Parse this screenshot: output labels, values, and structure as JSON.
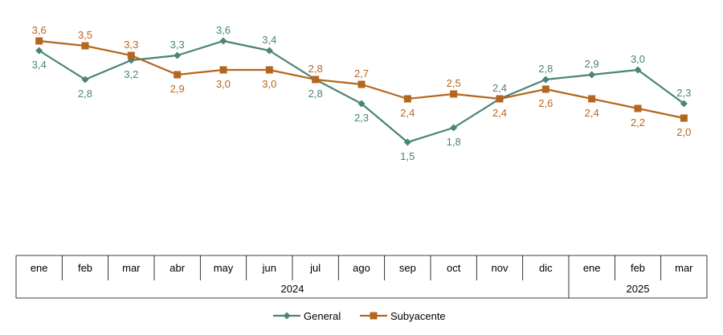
{
  "chart_data": {
    "type": "line",
    "title": "",
    "xlabel": "",
    "ylabel": "",
    "ylim": [
      0,
      4
    ],
    "grid": false,
    "legend_position": "bottom-center",
    "categories": [
      "ene",
      "feb",
      "mar",
      "abr",
      "may",
      "jun",
      "jul",
      "ago",
      "sep",
      "oct",
      "nov",
      "dic",
      "ene",
      "feb",
      "mar"
    ],
    "year_groups": [
      {
        "label": "2024",
        "start": 0,
        "end": 11
      },
      {
        "label": "2025",
        "start": 12,
        "end": 14
      }
    ],
    "series": [
      {
        "name": "General",
        "color": "#4a8378",
        "marker": "diamond",
        "values": [
          3.4,
          2.8,
          3.2,
          3.3,
          3.6,
          3.4,
          2.8,
          2.3,
          1.5,
          1.8,
          2.4,
          2.8,
          2.9,
          3.0,
          2.3
        ],
        "labels": [
          "3,4",
          "2,8",
          "3,2",
          "3,3",
          "3,6",
          "3,4",
          "2,8",
          "2,3",
          "1,5",
          "1,8",
          "2,4",
          "2,8",
          "2,9",
          "3,0",
          "2,3"
        ],
        "label_positions": [
          "below",
          "below",
          "below",
          "above",
          "above",
          "above",
          "below",
          "below",
          "below",
          "below",
          "above",
          "above",
          "above",
          "above",
          "above"
        ]
      },
      {
        "name": "Subyacente",
        "color": "#b5651d",
        "marker": "square",
        "values": [
          3.6,
          3.5,
          3.3,
          2.9,
          3.0,
          3.0,
          2.8,
          2.7,
          2.4,
          2.5,
          2.4,
          2.6,
          2.4,
          2.2,
          2.0
        ],
        "labels": [
          "3,6",
          "3,5",
          "3,3",
          "2,9",
          "3,0",
          "3,0",
          "2,8",
          "2,7",
          "2,4",
          "2,5",
          "2,4",
          "2,6",
          "2,4",
          "2,2",
          "2,0"
        ],
        "label_positions": [
          "above",
          "above",
          "above",
          "below",
          "below",
          "below",
          "above",
          "above",
          "below",
          "above",
          "below",
          "below",
          "below",
          "below",
          "below"
        ]
      }
    ]
  }
}
